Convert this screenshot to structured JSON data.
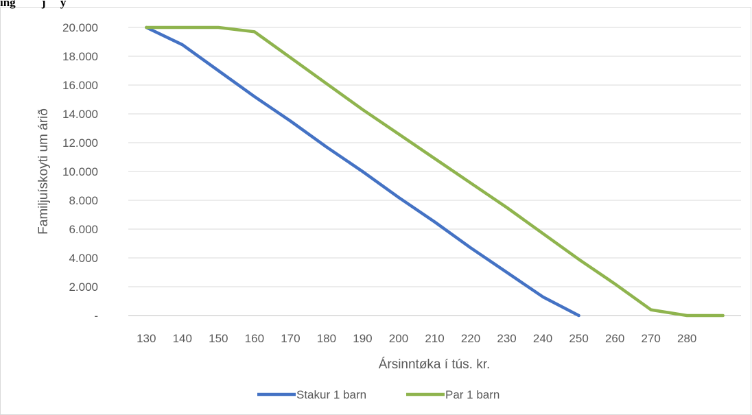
{
  "header_fragment": "ing         j     y",
  "chart_data": {
    "type": "line",
    "title": "",
    "xlabel": "Ársinntøka í tús. kr.",
    "ylabel": "Familjuískoyti um árið",
    "x_categories": [
      "130",
      "140",
      "150",
      "160",
      "170",
      "180",
      "190",
      "200",
      "210",
      "220",
      "230",
      "240",
      "250",
      "260",
      "270",
      "280"
    ],
    "x_numeric": [
      130,
      140,
      150,
      160,
      170,
      180,
      190,
      200,
      210,
      220,
      230,
      240,
      250,
      260,
      270,
      280
    ],
    "x_range": [
      125,
      295
    ],
    "ylim": [
      0,
      20000
    ],
    "y_ticks": [
      0,
      2000,
      4000,
      6000,
      8000,
      10000,
      12000,
      14000,
      16000,
      18000,
      20000
    ],
    "y_tick_labels": [
      "-",
      "2.000",
      "4.000",
      "6.000",
      "8.000",
      "10.000",
      "12.000",
      "14.000",
      "16.000",
      "18.000",
      "20.000"
    ],
    "grid": "horizontal",
    "legend_position": "bottom",
    "series": [
      {
        "name": "Stakur 1 barn",
        "color": "#4472C4",
        "x": [
          130,
          140,
          150,
          160,
          170,
          180,
          190,
          200,
          210,
          220,
          230,
          240,
          250
        ],
        "values": [
          20000,
          18800,
          17000,
          15200,
          13500,
          11700,
          10000,
          8200,
          6500,
          4700,
          3000,
          1300,
          0
        ]
      },
      {
        "name": "Par 1 barn",
        "color": "#8FB44E",
        "x": [
          130,
          140,
          150,
          160,
          170,
          180,
          190,
          200,
          210,
          220,
          230,
          240,
          250,
          260,
          270,
          280,
          290
        ],
        "values": [
          20000,
          20000,
          20000,
          19700,
          17900,
          16100,
          14300,
          12600,
          10900,
          9200,
          7500,
          5700,
          3900,
          2200,
          400,
          0,
          0
        ]
      }
    ]
  }
}
